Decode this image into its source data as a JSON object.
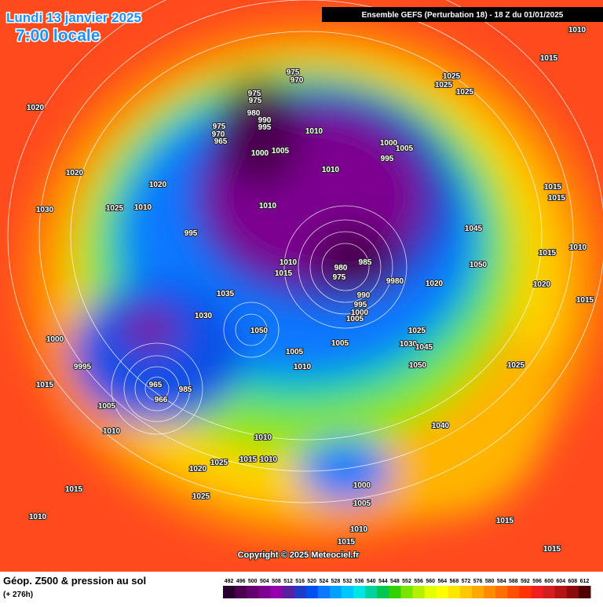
{
  "header": {
    "date": "Lundi 13 janvier 2025",
    "time": "7:00 locale",
    "run": "Ensemble GEFS  (Perturbation 18)  -  18 Z du 01/01/2025"
  },
  "map": {
    "isobar_labels": [
      1010,
      1015,
      1020,
      975,
      970,
      975,
      975,
      980,
      990,
      995,
      975,
      970,
      965,
      1010,
      1025,
      1025,
      1025,
      1000,
      1005,
      1010,
      1000,
      1005,
      995,
      1020,
      1020,
      1015,
      1015,
      1030,
      1025,
      1010,
      1010,
      995,
      1045,
      1050,
      1015,
      1010,
      1010,
      1015,
      980,
      985,
      975,
      9980,
      1020,
      1020,
      990,
      995,
      1000,
      1005,
      1015,
      1035,
      1030,
      1050,
      1000,
      1025,
      1005,
      1005,
      1030,
      1045,
      1010,
      1050,
      1025,
      9995,
      1015,
      965,
      985,
      966,
      1005,
      1010,
      1040,
      1010,
      1015,
      1010,
      1020,
      1025,
      1015,
      1025,
      1000,
      1005,
      1010,
      1015,
      1010,
      1015,
      1015
    ],
    "copyright": "Copyright © 2025 Meteociel.fr"
  },
  "footer": {
    "title": "Géop. Z500 & pression au sol",
    "lead": "(+ 276h)"
  },
  "colorbar": {
    "labels": [
      492,
      496,
      500,
      504,
      508,
      512,
      516,
      520,
      524,
      528,
      532,
      536,
      540,
      544,
      548,
      552,
      556,
      560,
      564,
      568,
      572,
      576,
      580,
      584,
      588,
      592,
      596,
      600,
      604,
      608,
      612
    ],
    "colors": [
      "#2a0030",
      "#4b0050",
      "#64006e",
      "#7d0090",
      "#9600ac",
      "#5a1ea0",
      "#1e3cc8",
      "#0050f0",
      "#0a78ff",
      "#00a0ff",
      "#00c8ff",
      "#00e6e6",
      "#00d2a0",
      "#00c850",
      "#32d200",
      "#78e600",
      "#b4f000",
      "#e6ff00",
      "#ffff00",
      "#ffe600",
      "#ffc800",
      "#ffaa00",
      "#ff8c00",
      "#ff6e00",
      "#ff5000",
      "#ff3200",
      "#f01e1e",
      "#d21e1e",
      "#b41414",
      "#8c0a0a",
      "#500000"
    ]
  }
}
